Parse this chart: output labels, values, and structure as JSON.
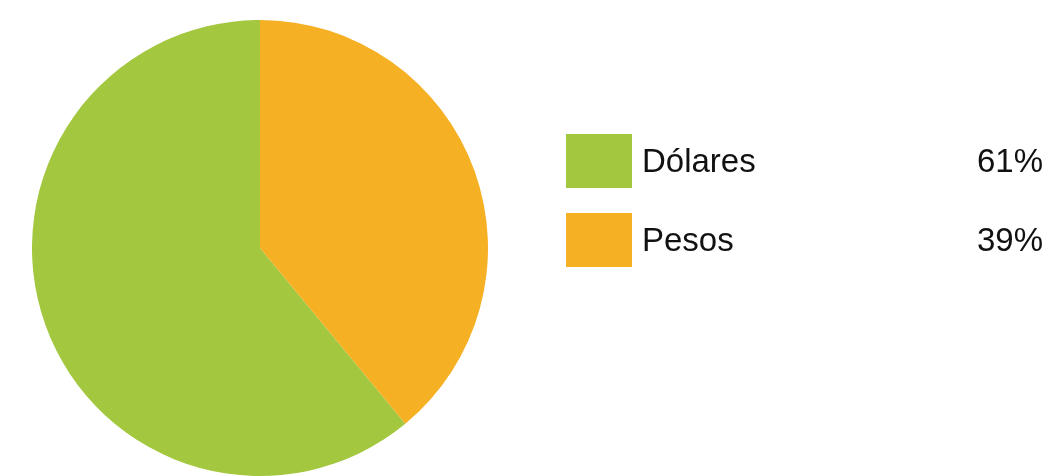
{
  "chart_data": {
    "type": "pie",
    "categories": [
      "Dólares",
      "Pesos"
    ],
    "values": [
      61,
      39
    ],
    "colors": [
      "#a3c73f",
      "#f6b024"
    ],
    "value_labels": [
      "61%",
      "39%"
    ],
    "legend": "right"
  }
}
